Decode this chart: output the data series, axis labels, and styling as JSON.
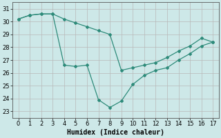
{
  "xlabel": "Humidex (Indice chaleur)",
  "xlim": [
    -0.5,
    17.5
  ],
  "ylim": [
    22.5,
    31.5
  ],
  "yticks": [
    23,
    24,
    25,
    26,
    27,
    28,
    29,
    30,
    31
  ],
  "xticks": [
    0,
    1,
    2,
    3,
    4,
    5,
    6,
    7,
    8,
    9,
    10,
    11,
    12,
    13,
    14,
    15,
    16,
    17
  ],
  "line1_x": [
    0,
    1,
    2,
    3,
    4,
    5,
    6,
    7,
    8,
    9,
    10,
    11,
    12,
    13,
    14,
    15,
    16,
    17
  ],
  "line1_y": [
    30.2,
    30.5,
    30.6,
    30.6,
    26.6,
    26.5,
    26.6,
    23.9,
    23.3,
    23.8,
    25.1,
    25.8,
    26.2,
    26.4,
    27.0,
    27.5,
    28.1,
    28.4
  ],
  "line2_x": [
    0,
    1,
    2,
    3,
    4,
    5,
    6,
    7,
    8,
    9,
    10,
    11,
    12,
    13,
    14,
    15,
    16,
    17
  ],
  "line2_y": [
    30.2,
    30.5,
    30.6,
    30.6,
    30.2,
    29.9,
    29.6,
    29.3,
    29.0,
    26.2,
    26.4,
    26.6,
    26.8,
    27.2,
    27.7,
    28.1,
    28.7,
    28.4
  ],
  "line_color": "#2e8b7a",
  "bg_color": "#cde8e8",
  "grid_color": "#b8b8b8",
  "tick_fontsize": 6,
  "label_fontsize": 7
}
